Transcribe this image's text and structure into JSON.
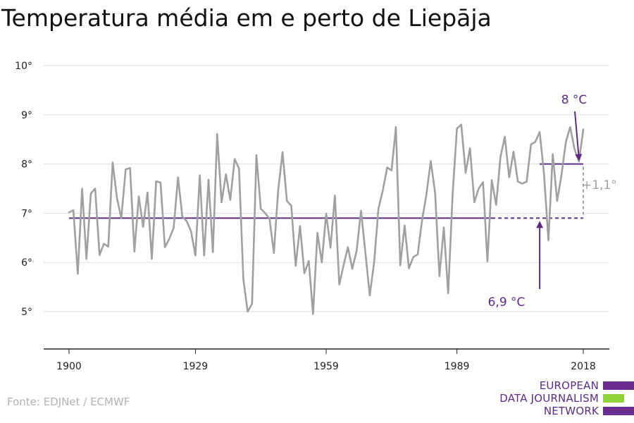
{
  "title": "Temperatura média em e perto de Liepāja",
  "source": "Fonte: EDJNet / ECMWF",
  "logo": {
    "lines": [
      "EUROPEAN",
      "DATA JOURNALISM",
      "NETWORK"
    ]
  },
  "colors": {
    "series": "#a0a0a0",
    "accent": "#5b2c83",
    "grid": "#dddddd",
    "axis": "#222222",
    "diff": "#a0a0a0"
  },
  "chart_data": {
    "type": "line",
    "title": "Temperatura média em e perto de Liepāja",
    "xlabel": "",
    "ylabel": "",
    "x_ticks": [
      "1900",
      "1929",
      "1959",
      "1989",
      "2018"
    ],
    "y_ticks": [
      "5°",
      "6°",
      "7°",
      "8°",
      "9°",
      "10°"
    ],
    "xlim": [
      1900,
      2018
    ],
    "ylim": [
      4.2,
      10
    ],
    "grid": true,
    "series": [
      {
        "x": [
          1900,
          1901,
          1902,
          1903,
          1904,
          1905,
          1906,
          1907,
          1908,
          1909,
          1910,
          1911,
          1912,
          1913,
          1914,
          1915,
          1916,
          1917,
          1918,
          1919,
          1920,
          1921,
          1922,
          1923,
          1924,
          1925,
          1926,
          1927,
          1928,
          1929,
          1930,
          1931,
          1932,
          1933,
          1934,
          1935,
          1936,
          1937,
          1938,
          1939,
          1940,
          1941,
          1942,
          1943,
          1944,
          1945,
          1946,
          1947,
          1948,
          1949,
          1950,
          1951,
          1952,
          1953,
          1954,
          1955,
          1956,
          1957,
          1958,
          1959,
          1960,
          1961,
          1962,
          1963,
          1964,
          1965,
          1966,
          1967,
          1968,
          1969,
          1970,
          1971,
          1972,
          1973,
          1974,
          1975,
          1976,
          1977,
          1978,
          1979,
          1980,
          1981,
          1982,
          1983,
          1984,
          1985,
          1986,
          1987,
          1988,
          1989,
          1990,
          1991,
          1992,
          1993,
          1994,
          1995,
          1996,
          1997,
          1998,
          1999,
          2000,
          2001,
          2002,
          2003,
          2004,
          2005,
          2006,
          2007,
          2008,
          2009,
          2010,
          2011,
          2012,
          2013,
          2014,
          2015,
          2016,
          2017,
          2018
        ],
        "values": [
          7.02,
          7.06,
          5.77,
          7.5,
          6.07,
          7.4,
          7.5,
          6.15,
          6.38,
          6.32,
          8.03,
          7.3,
          6.9,
          7.89,
          7.92,
          6.22,
          7.34,
          6.72,
          7.42,
          6.07,
          7.65,
          7.62,
          6.31,
          6.48,
          6.7,
          7.73,
          6.93,
          6.84,
          6.63,
          6.14,
          7.77,
          6.14,
          7.68,
          6.21,
          8.61,
          7.22,
          7.79,
          7.27,
          8.1,
          7.91,
          5.65,
          5.0,
          5.16,
          8.18,
          7.09,
          7.0,
          6.89,
          6.19,
          7.47,
          8.24,
          7.25,
          7.15,
          5.93,
          6.74,
          5.78,
          6.03,
          4.95,
          6.6,
          6.0,
          6.99,
          6.3,
          7.36,
          5.55,
          5.94,
          6.31,
          5.87,
          6.24,
          7.05,
          6.2,
          5.33,
          6.0,
          7.09,
          7.46,
          7.93,
          7.87,
          8.75,
          5.94,
          6.75,
          5.88,
          6.11,
          6.16,
          6.85,
          7.38,
          8.06,
          7.41,
          5.72,
          6.71,
          5.37,
          7.35,
          8.72,
          8.8,
          7.82,
          8.32,
          7.22,
          7.5,
          7.63,
          6.02,
          7.67,
          7.17,
          8.15,
          8.55,
          7.73,
          8.25,
          7.64,
          7.6,
          7.64,
          8.4,
          8.45,
          8.65,
          7.79,
          6.45,
          8.2,
          7.25,
          7.78,
          8.45,
          8.75,
          8.3,
          8.05,
          8.7
        ]
      }
    ],
    "annotations": {
      "baseline": {
        "value": 6.9,
        "label": "6,9 °C",
        "x_start": 1900,
        "x_end": 2018
      },
      "recent": {
        "value": 8.0,
        "label": "8 °C",
        "x_start": 2008,
        "x_end": 2018
      },
      "difference": {
        "label": "+1,1°"
      }
    }
  }
}
